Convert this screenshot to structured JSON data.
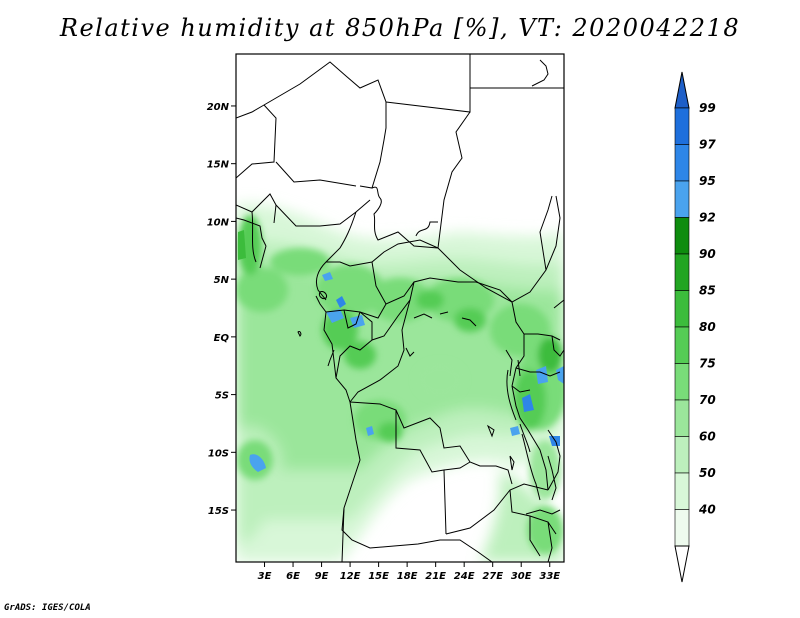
{
  "title": "Relative humidity at 850hPa [%], VT: 2020042218",
  "credit": "GrADS: IGES/COLA",
  "map": {
    "lat_labels": [
      "20N",
      "15N",
      "10N",
      "5N",
      "EQ",
      "5S",
      "10S",
      "15S"
    ],
    "lon_labels": [
      "3E",
      "6E",
      "9E",
      "12E",
      "15E",
      "18E",
      "21E",
      "24E",
      "27E",
      "30E",
      "33E"
    ],
    "lon_range": [
      0,
      34.5
    ],
    "lat_range": [
      -19.5,
      24.5
    ]
  },
  "colorbar": {
    "labels": [
      "99",
      "97",
      "95",
      "92",
      "90",
      "85",
      "80",
      "75",
      "70",
      "60",
      "50",
      "40"
    ],
    "colors": [
      "#1e6fdc",
      "#2e86e8",
      "#4aa3ee",
      "#0e8c0e",
      "#22a522",
      "#3cbc3c",
      "#55cc55",
      "#79dc79",
      "#9be69b",
      "#bdf0bd",
      "#d8f7d8",
      "#eefbee"
    ],
    "top_arrow_color": "#1e5fc8",
    "bottom_arrow_color": "#ffffff"
  }
}
